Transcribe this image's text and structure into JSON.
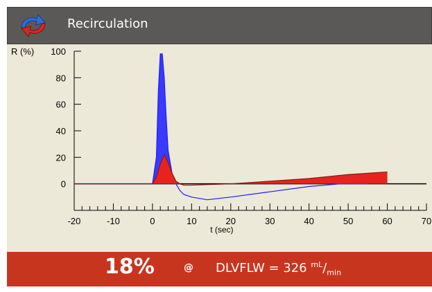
{
  "header": {
    "title": "Recirculation",
    "icon": "recirculation-arrows-icon"
  },
  "chart_data": {
    "type": "area",
    "ylabel": "R (%)",
    "xlabel": "t (sec)",
    "xlim": [
      -20,
      70
    ],
    "ylim": [
      -20,
      100
    ],
    "xticks": [
      -20,
      -10,
      0,
      10,
      20,
      30,
      40,
      50,
      60,
      70
    ],
    "yticks": [
      100,
      80,
      60,
      40,
      20,
      0
    ],
    "series": [
      {
        "color": "#3a3aff",
        "x": [
          -20,
          -5,
          -1,
          0,
          1,
          1.5,
          2,
          2.5,
          3,
          3.5,
          4,
          5,
          6,
          7,
          8,
          10,
          14,
          20,
          30,
          40,
          48,
          55
        ],
        "y": [
          0,
          0,
          0,
          0,
          20,
          70,
          98,
          98,
          80,
          50,
          25,
          8,
          0,
          -5,
          -8,
          -10,
          -12,
          -10,
          -6,
          -2,
          0,
          0
        ]
      },
      {
        "color": "#e8231d",
        "x": [
          -20,
          -5,
          -2,
          0,
          1,
          2,
          3,
          4,
          5,
          6,
          7,
          8,
          10,
          20,
          30,
          40,
          50,
          60
        ],
        "y": [
          0,
          0,
          0,
          0,
          5,
          15,
          22,
          16,
          8,
          2,
          0,
          -1,
          -1,
          0,
          2,
          4,
          7,
          9
        ]
      }
    ]
  },
  "result": {
    "percent": "18%",
    "at": "@",
    "flow_label": "DLVFLW = 326",
    "unit_numerator": "mL",
    "unit_denominator": "min"
  },
  "colors": {
    "header_bg": "#5b5958",
    "plot_bg": "#ece9d8",
    "footer_bg": "#c8351f"
  }
}
